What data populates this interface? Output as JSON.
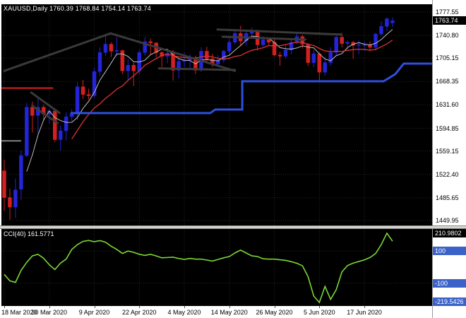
{
  "header": {
    "title": "XAUUSD,Daily 1760.39 1768.84 1754.14 1763.74"
  },
  "indicator": {
    "label": "CCI(40) 161.5771"
  },
  "colors": {
    "background": "#000000",
    "frame": "#ffffff",
    "grid": "#272727",
    "bull": "#2424d8",
    "bear": "#d42020",
    "ma_fast": "#bdbdbd",
    "ma_slow": "#dd3333",
    "step_line": "#2d50dd",
    "trendline": "#3a3a3a",
    "red_level_line": "#e02020",
    "gray_level_line": "#aaaaaa",
    "cci_line": "#7ad833",
    "axis_text": "#000000",
    "current_box_bg": "#000000",
    "current_box_text": "#ffffff",
    "level_box_bg": "#3b62c9",
    "separator": "#d6d3ce"
  },
  "chart_data": [
    {
      "type": "candlestick",
      "symbol": "XAUUSD",
      "timeframe": "Daily",
      "open": "1760.39",
      "high": "1768.84",
      "low": "1754.14",
      "close": "1763.74",
      "current_price": "1763.74",
      "y_axis_labels": [
        "1777.55",
        "1740.80",
        "1705.15",
        "1668.35",
        "1631.60",
        "1594.85",
        "1559.15",
        "1522.40",
        "1485.65",
        "1449.95"
      ],
      "x_tick_labels": [
        "18 Mar 2020",
        "30 Mar 2020",
        "9 Apr 2020",
        "22 Apr 2020",
        "4 May 2020",
        "14 May 2020",
        "26 May 2020",
        "5 Jun 2020",
        "17 Jun 2020"
      ],
      "x_tick_indices": [
        0,
        8,
        16,
        24,
        32,
        40,
        48,
        56,
        64
      ],
      "candles": [
        [
          1528,
          1545,
          1465,
          1486
        ],
        [
          1486,
          1500,
          1451,
          1471
        ],
        [
          1471,
          1516,
          1454,
          1498
        ],
        [
          1499,
          1560,
          1482,
          1552
        ],
        [
          1552,
          1635,
          1550,
          1628
        ],
        [
          1628,
          1637,
          1588,
          1615
        ],
        [
          1615,
          1643,
          1586,
          1628
        ],
        [
          1628,
          1632,
          1606,
          1617
        ],
        [
          1617,
          1625,
          1602,
          1622
        ],
        [
          1622,
          1626,
          1573,
          1577
        ],
        [
          1577,
          1599,
          1560,
          1591
        ],
        [
          1591,
          1620,
          1576,
          1613
        ],
        [
          1613,
          1625,
          1606,
          1618
        ],
        [
          1618,
          1667,
          1608,
          1660
        ],
        [
          1660,
          1671,
          1641,
          1648
        ],
        [
          1648,
          1657,
          1640,
          1646
        ],
        [
          1646,
          1690,
          1642,
          1684
        ],
        [
          1684,
          1722,
          1677,
          1714
        ],
        [
          1714,
          1740,
          1708,
          1727
        ],
        [
          1727,
          1730,
          1707,
          1716
        ],
        [
          1716,
          1738,
          1708,
          1717
        ],
        [
          1717,
          1718,
          1680,
          1685
        ],
        [
          1685,
          1703,
          1670,
          1694
        ],
        [
          1694,
          1698,
          1661,
          1685
        ],
        [
          1685,
          1718,
          1679,
          1714
        ],
        [
          1714,
          1738,
          1709,
          1731
        ],
        [
          1731,
          1736,
          1711,
          1729
        ],
        [
          1729,
          1730,
          1706,
          1714
        ],
        [
          1714,
          1716,
          1691,
          1708
        ],
        [
          1708,
          1717,
          1697,
          1713
        ],
        [
          1713,
          1718,
          1670,
          1686
        ],
        [
          1686,
          1706,
          1673,
          1700
        ],
        [
          1700,
          1714,
          1691,
          1702
        ],
        [
          1702,
          1711,
          1688,
          1706
        ],
        [
          1706,
          1709,
          1680,
          1686
        ],
        [
          1686,
          1722,
          1683,
          1716
        ],
        [
          1716,
          1723,
          1700,
          1704
        ],
        [
          1704,
          1712,
          1691,
          1696
        ],
        [
          1696,
          1710,
          1693,
          1702
        ],
        [
          1702,
          1718,
          1698,
          1716
        ],
        [
          1716,
          1736,
          1710,
          1730
        ],
        [
          1730,
          1751,
          1727,
          1744
        ],
        [
          1744,
          1756,
          1725,
          1732
        ],
        [
          1732,
          1747,
          1725,
          1744
        ],
        [
          1744,
          1753,
          1740,
          1748
        ],
        [
          1748,
          1750,
          1717,
          1726
        ],
        [
          1726,
          1740,
          1723,
          1734
        ],
        [
          1734,
          1735,
          1725,
          1730
        ],
        [
          1730,
          1735,
          1708,
          1710
        ],
        [
          1710,
          1715,
          1693,
          1708
        ],
        [
          1708,
          1727,
          1704,
          1718
        ],
        [
          1718,
          1733,
          1711,
          1730
        ],
        [
          1730,
          1744,
          1727,
          1739
        ],
        [
          1739,
          1742,
          1720,
          1727
        ],
        [
          1727,
          1729,
          1693,
          1698
        ],
        [
          1698,
          1718,
          1691,
          1712
        ],
        [
          1712,
          1714,
          1670,
          1683
        ],
        [
          1683,
          1707,
          1677,
          1698
        ],
        [
          1698,
          1722,
          1693,
          1714
        ],
        [
          1714,
          1740,
          1709,
          1738
        ],
        [
          1738,
          1745,
          1722,
          1728
        ],
        [
          1728,
          1733,
          1717,
          1730
        ],
        [
          1730,
          1732,
          1704,
          1725
        ],
        [
          1725,
          1733,
          1711,
          1726
        ],
        [
          1726,
          1731,
          1717,
          1726
        ],
        [
          1726,
          1731,
          1716,
          1722
        ],
        [
          1722,
          1745,
          1717,
          1743
        ],
        [
          1743,
          1763,
          1740,
          1755
        ],
        [
          1755,
          1769,
          1748,
          1767
        ],
        [
          1760.39,
          1768.84,
          1754.14,
          1763.74
        ]
      ],
      "overlays": {
        "ma_fast_period": 5,
        "ma_slow_period": 13,
        "step_line_points": [
          [
            11.8,
            1618.7
          ],
          [
            36.6,
            1618.7
          ],
          [
            37.5,
            1624.3
          ],
          [
            42.3,
            1624.3
          ],
          [
            42.3,
            1668.7
          ],
          [
            67.4,
            1668.7
          ],
          [
            69.5,
            1680
          ],
          [
            71,
            1696.5
          ],
          [
            76,
            1696.5
          ]
        ],
        "trendlines": [
          [
            0,
            1685,
            18.9,
            1744
          ],
          [
            18.9,
            1744,
            41,
            1685
          ],
          [
            27.5,
            1689,
            41,
            1686.5
          ],
          [
            37.9,
            1750,
            59.9,
            1742.2
          ],
          [
            38.8,
            1738.7,
            53.5,
            1734.3
          ],
          [
            4.8,
            1651,
            9.8,
            1619
          ],
          [
            5,
            1630,
            9.5,
            1603
          ]
        ],
        "red_hline": {
          "price": 1658,
          "from": -0.5,
          "to": 8.7
        },
        "gray_hline": {
          "price": 1575,
          "from": -0.5,
          "to": 3
        }
      }
    },
    {
      "type": "line",
      "title": "CCI(40)",
      "current_value": "161.5771",
      "scale_max": "210.9802",
      "scale_min": "-219.5426",
      "levels": [
        "100",
        "-100"
      ],
      "values": [
        -45,
        -85,
        -95,
        -20,
        30,
        70,
        80,
        55,
        15,
        -15,
        25,
        50,
        110,
        140,
        160,
        166,
        158,
        165,
        155,
        130,
        110,
        85,
        100,
        92,
        80,
        73,
        80,
        70,
        58,
        60,
        62,
        54,
        48,
        54,
        50,
        50,
        44,
        38,
        48,
        58,
        66,
        88,
        106,
        88,
        70,
        66,
        52,
        50,
        50,
        46,
        42,
        34,
        24,
        8,
        -60,
        -180,
        -219.5426,
        -120,
        -200,
        -140,
        -30,
        10,
        25,
        35,
        45,
        60,
        85,
        140,
        210.9802,
        161.5771
      ]
    }
  ]
}
